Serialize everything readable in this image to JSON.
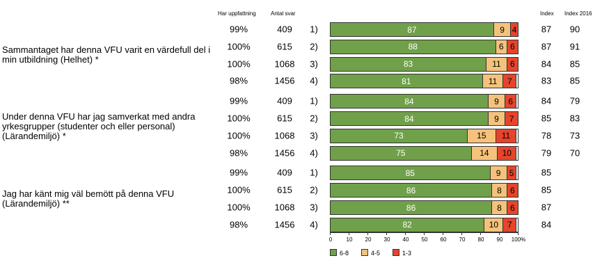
{
  "chart_data": {
    "type": "stacked-bar",
    "column_headers": {
      "has_opinion": "Har uppfattning",
      "responses": "Antal svar",
      "index": "Index",
      "index_2016": "Index 2016"
    },
    "questions": [
      "Sammantaget har denna VFU varit en värdefull del i min utbildning (Helhet) *",
      "Under denna VFU har jag samverkat med andra yrkesgrupper (studenter och eller personal) (Lärandemiljö) *",
      "Jag har känt mig väl bemött på denna VFU (Lärandemiljö) **"
    ],
    "categories": [
      "1)",
      "2)",
      "3)",
      "4)",
      "1)",
      "2)",
      "3)",
      "4)",
      "1)",
      "2)",
      "3)",
      "4)"
    ],
    "has_opinion": {
      "values": [
        99,
        100,
        100,
        98,
        99,
        100,
        100,
        98,
        99,
        100,
        100,
        98
      ],
      "value_labels": [
        "99%",
        "100%",
        "100%",
        "98%",
        "99%",
        "100%",
        "100%",
        "98%",
        "99%",
        "100%",
        "100%",
        "98%"
      ]
    },
    "responses": [
      409,
      615,
      1068,
      1456,
      409,
      615,
      1068,
      1456,
      409,
      615,
      1068,
      1456
    ],
    "index": [
      87,
      87,
      84,
      83,
      84,
      85,
      78,
      79,
      85,
      85,
      87,
      84
    ],
    "index_2016": [
      90,
      91,
      85,
      85,
      79,
      83,
      73,
      70,
      null,
      null,
      null,
      null
    ],
    "series": [
      {
        "name": "6-8",
        "color": "#70a04a",
        "values": [
          87,
          88,
          83,
          81,
          84,
          84,
          73,
          75,
          85,
          86,
          86,
          82
        ]
      },
      {
        "name": "4-5",
        "color": "#f5c27c",
        "values": [
          9,
          6,
          11,
          11,
          9,
          9,
          15,
          14,
          9,
          8,
          8,
          10
        ]
      },
      {
        "name": "1-3",
        "color": "#e6452b",
        "values": [
          4,
          6,
          6,
          7,
          6,
          7,
          11,
          10,
          5,
          6,
          6,
          7
        ]
      }
    ],
    "xlim": [
      0,
      100
    ],
    "xticks": [
      0,
      10,
      20,
      30,
      40,
      50,
      60,
      70,
      80,
      90,
      {
        "value": 100,
        "label": "100%"
      }
    ]
  }
}
